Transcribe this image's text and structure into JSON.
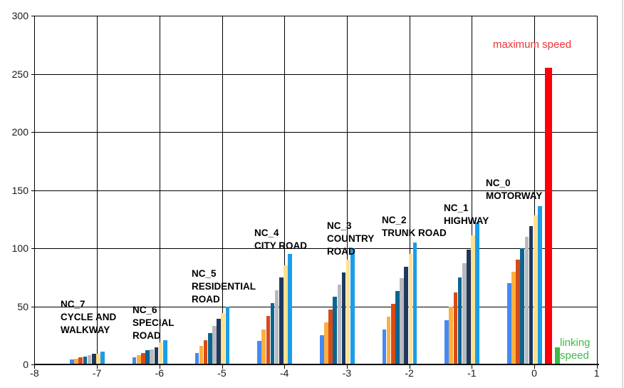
{
  "chart_data": {
    "type": "bar",
    "title": "",
    "x_axis": {
      "tick_labels": [
        "-8",
        "-7",
        "-6",
        "-5",
        "-4",
        "-3",
        "-2",
        "-1",
        "0",
        "1"
      ],
      "ticks": [
        -8,
        -7,
        -6,
        -5,
        -4,
        -3,
        -2,
        -1,
        0,
        1
      ],
      "range": [
        -8,
        1
      ]
    },
    "y_axis": {
      "tick_labels": [
        "300",
        "250",
        "200",
        "150",
        "100",
        "50",
        "0"
      ],
      "ticks": [
        300,
        250,
        200,
        150,
        100,
        50,
        0
      ],
      "range": [
        0,
        300
      ]
    },
    "grid": true,
    "legend": "none",
    "background": "#FFFFFF",
    "grid_color": "#000000",
    "text_color": "#1A1A1A",
    "series_colors": [
      "#4489F4",
      "#FBB040",
      "#D84B16",
      "#0C6590",
      "#B7BABF",
      "#20395F",
      "#FFE18F",
      "#1C9DE9"
    ],
    "groups": [
      {
        "x": -7,
        "label_lines": [
          "NC_7",
          "CYCLE AND",
          "WALKWAY"
        ],
        "values": [
          4,
          5,
          6,
          7,
          8,
          9,
          9,
          11
        ]
      },
      {
        "x": -6,
        "label_lines": [
          "NC_6",
          "SPECIAL",
          "ROAD"
        ],
        "values": [
          6,
          8,
          10,
          12,
          13,
          15,
          19,
          21
        ]
      },
      {
        "x": -5,
        "label_lines": [
          "NC_5",
          "RESIDENTIAL",
          "ROAD"
        ],
        "values": [
          10,
          16,
          21,
          27,
          33,
          39,
          44,
          50
        ]
      },
      {
        "x": -4,
        "label_lines": [
          "NC_4",
          "CITY ROAD"
        ],
        "values": [
          20,
          30,
          42,
          53,
          64,
          75,
          85,
          95
        ]
      },
      {
        "x": -3,
        "label_lines": [
          "NC_3",
          "COUNTRY",
          "ROAD"
        ],
        "values": [
          25,
          36,
          47,
          58,
          69,
          79,
          90,
          100
        ]
      },
      {
        "x": -2,
        "label_lines": [
          "NC_2",
          "TRUNK ROAD"
        ],
        "values": [
          30,
          41,
          52,
          63,
          74,
          84,
          95,
          105
        ]
      },
      {
        "x": -1,
        "label_lines": [
          "NC_1",
          "HIGHWAY"
        ],
        "values": [
          38,
          50,
          62,
          75,
          87,
          99,
          111,
          122
        ]
      },
      {
        "x": 0,
        "label_lines": [
          "NC_0",
          "MOTORWAY"
        ],
        "values": [
          70,
          80,
          90,
          100,
          110,
          119,
          128,
          136
        ]
      }
    ],
    "annotations": {
      "maximum_speed": {
        "label": "maximum speed",
        "value": 255,
        "x": 0.2,
        "bar_color": "#FB0007",
        "text_color": "#EE3237"
      },
      "linking_speed": {
        "label_lines": [
          "linking",
          "speed"
        ],
        "value": 15,
        "x": 0.35,
        "bar_color": "#3EBA47",
        "text_color": "#3EBA47"
      }
    }
  }
}
